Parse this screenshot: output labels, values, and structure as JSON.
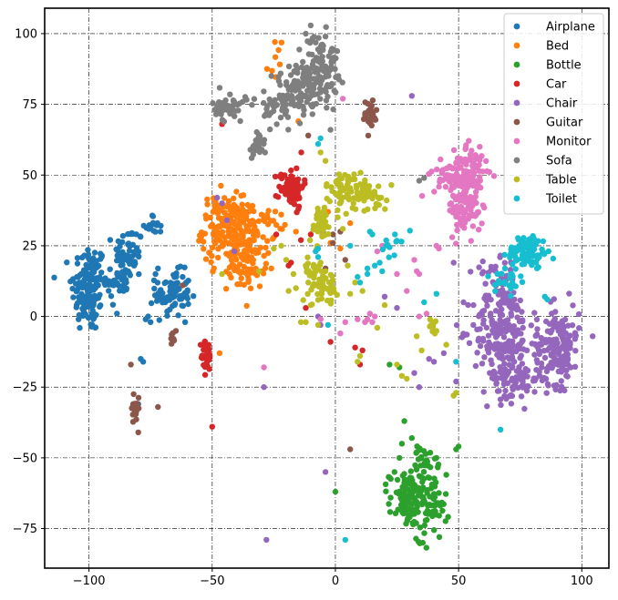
{
  "chart_data": {
    "type": "scatter",
    "title": "",
    "xlabel": "",
    "ylabel": "",
    "xlim": [
      -118,
      111
    ],
    "ylim": [
      -89,
      109
    ],
    "xticks": [
      -100,
      -50,
      0,
      50,
      100
    ],
    "yticks": [
      -75,
      -50,
      -25,
      0,
      25,
      50,
      75,
      100
    ],
    "x_tick_labels": [
      "−100",
      "−50",
      "0",
      "50",
      "100"
    ],
    "y_tick_labels": [
      "−75",
      "−50",
      "−25",
      "0",
      "25",
      "50",
      "75",
      "100"
    ],
    "grid": true,
    "legend_position": "top-right",
    "series": [
      {
        "name": "Airplane",
        "color": "#1f77b4",
        "clusters": [
          {
            "cx": -100,
            "cy": 10,
            "sx": 3.5,
            "sy": 8,
            "n": 150
          },
          {
            "cx": -84,
            "cy": 22,
            "sx": 3,
            "sy": 5,
            "n": 55
          },
          {
            "cx": -66,
            "cy": 8,
            "sx": 3.5,
            "sy": 4,
            "n": 80
          },
          {
            "cx": -74,
            "cy": 32,
            "sx": 1.5,
            "sy": 2,
            "n": 14
          },
          {
            "cx": -88,
            "cy": 13,
            "sx": 4,
            "sy": 2.5,
            "n": 25
          }
        ],
        "points": [
          [
            -77,
            -1
          ],
          [
            -75,
            -2
          ],
          [
            -72,
            17
          ],
          [
            -73,
            15
          ],
          [
            -78,
            -16
          ],
          [
            -80,
            -31
          ],
          [
            -61,
            -2
          ],
          [
            -62,
            14
          ],
          [
            -69,
            5
          ],
          [
            -76,
            0
          ],
          [
            -86,
            9
          ],
          [
            -90,
            11
          ],
          [
            -79,
            -15
          ],
          [
            -71,
            30
          ]
        ]
      },
      {
        "name": "Bed",
        "color": "#ff7f0e",
        "clusters": [
          {
            "cx": -46,
            "cy": 31,
            "sx": 4,
            "sy": 6,
            "n": 130
          },
          {
            "cx": -36,
            "cy": 23,
            "sx": 4,
            "sy": 7,
            "n": 130
          },
          {
            "cx": -38,
            "cy": 35,
            "sx": 3,
            "sy": 3,
            "n": 30
          },
          {
            "cx": -26,
            "cy": 34,
            "sx": 2.5,
            "sy": 3,
            "n": 15
          },
          {
            "cx": -24,
            "cy": 91,
            "sx": 1.5,
            "sy": 4,
            "n": 8
          }
        ],
        "points": [
          [
            -47,
            -13
          ],
          [
            -16,
            30
          ],
          [
            -15,
            69
          ],
          [
            -22,
            36
          ],
          [
            -2,
            26
          ],
          [
            2,
            24
          ],
          [
            6,
            33
          ],
          [
            -3,
            37
          ],
          [
            -26,
            17
          ],
          [
            -30,
            16
          ],
          [
            -43,
            15
          ],
          [
            -25,
            28
          ]
        ]
      },
      {
        "name": "Bottle",
        "color": "#2ca02c",
        "clusters": [
          {
            "cx": 30,
            "cy": -65,
            "sx": 4,
            "sy": 5,
            "n": 100
          },
          {
            "cx": 39,
            "cy": -67,
            "sx": 3,
            "sy": 6,
            "n": 60
          },
          {
            "cx": 36,
            "cy": -53,
            "sx": 2.5,
            "sy": 4,
            "n": 30
          }
        ],
        "points": [
          [
            28,
            -37
          ],
          [
            27,
            -45
          ],
          [
            26,
            -50
          ],
          [
            24,
            -55
          ],
          [
            22,
            -57
          ],
          [
            50,
            -46
          ],
          [
            49,
            -47
          ],
          [
            0,
            -62
          ],
          [
            26,
            -18
          ],
          [
            22,
            -17
          ],
          [
            33,
            -48
          ],
          [
            41,
            -50
          ],
          [
            45,
            -56
          ],
          [
            31,
            -43
          ]
        ]
      },
      {
        "name": "Car",
        "color": "#d62728",
        "clusters": [
          {
            "cx": -18,
            "cy": 46,
            "sx": 2.5,
            "sy": 3.5,
            "n": 75
          },
          {
            "cx": -52,
            "cy": -14,
            "sx": 1.2,
            "sy": 3,
            "n": 28
          }
        ],
        "points": [
          [
            -46,
            68
          ],
          [
            -50,
            -39
          ],
          [
            -18,
            19
          ],
          [
            -19,
            18
          ],
          [
            -15,
            38
          ],
          [
            -10,
            29
          ],
          [
            -14,
            27
          ],
          [
            -24,
            29
          ],
          [
            -2,
            -9
          ],
          [
            8,
            -11
          ],
          [
            11,
            -12
          ],
          [
            10,
            -17
          ],
          [
            -12,
            3
          ],
          [
            -54,
            -10
          ]
        ]
      },
      {
        "name": "Chair",
        "color": "#9467bd",
        "clusters": [
          {
            "cx": 68,
            "cy": -5,
            "sx": 6,
            "sy": 8,
            "n": 200
          },
          {
            "cx": 90,
            "cy": -10,
            "sx": 4.5,
            "sy": 7,
            "n": 160
          },
          {
            "cx": 72,
            "cy": -22,
            "sx": 6,
            "sy": 4,
            "n": 80
          },
          {
            "cx": 66,
            "cy": 14,
            "sx": 5,
            "sy": 3,
            "n": 30
          }
        ],
        "points": [
          [
            -28,
            -79
          ],
          [
            -4,
            -55
          ],
          [
            31,
            78
          ],
          [
            -29,
            -25
          ],
          [
            34,
            -25
          ],
          [
            -48,
            42
          ],
          [
            -46,
            40
          ],
          [
            -44,
            34
          ],
          [
            -41,
            23
          ],
          [
            -5,
            30
          ],
          [
            -7,
            0
          ],
          [
            -6,
            -3
          ],
          [
            52,
            5
          ],
          [
            56,
            -3
          ],
          [
            48,
            19
          ],
          [
            25,
            3
          ],
          [
            20,
            7
          ],
          [
            49,
            -23
          ],
          [
            48,
            -28
          ],
          [
            40,
            -16
          ],
          [
            44,
            -13
          ],
          [
            38,
            -15
          ],
          [
            32,
            -20
          ]
        ]
      },
      {
        "name": "Guitar",
        "color": "#8c564b",
        "clusters": [
          {
            "cx": 14,
            "cy": 71,
            "sx": 1.5,
            "sy": 3,
            "n": 30
          },
          {
            "cx": -81,
            "cy": -32,
            "sx": 0.8,
            "sy": 3,
            "n": 18
          },
          {
            "cx": -66,
            "cy": -7,
            "sx": 0.8,
            "sy": 1.5,
            "n": 8
          }
        ],
        "points": [
          [
            -80,
            -41
          ],
          [
            -83,
            -17
          ],
          [
            -72,
            -32
          ],
          [
            -62,
            11
          ],
          [
            6,
            -47
          ],
          [
            -1,
            29
          ],
          [
            -1,
            26
          ],
          [
            -4,
            17
          ],
          [
            -11,
            64
          ],
          [
            4,
            20
          ],
          [
            2,
            30
          ]
        ]
      },
      {
        "name": "Monitor",
        "color": "#e377c2",
        "clusters": [
          {
            "cx": 50,
            "cy": 50,
            "sx": 5,
            "sy": 4,
            "n": 100
          },
          {
            "cx": 53,
            "cy": 39,
            "sx": 3.5,
            "sy": 5,
            "n": 90
          },
          {
            "cx": 56,
            "cy": 55,
            "sx": 2,
            "sy": 3,
            "n": 20
          }
        ],
        "points": [
          [
            3,
            77
          ],
          [
            -29,
            -18
          ],
          [
            2,
            -6
          ],
          [
            -6,
            -1
          ],
          [
            13,
            -1
          ],
          [
            15,
            -2
          ],
          [
            14,
            1
          ],
          [
            16,
            0
          ],
          [
            12,
            -2
          ],
          [
            32,
            20
          ],
          [
            33,
            16
          ],
          [
            34,
            15
          ],
          [
            25,
            15
          ],
          [
            29,
            9
          ],
          [
            41,
            25
          ],
          [
            42,
            24
          ],
          [
            34,
            0
          ],
          [
            37,
            1
          ],
          [
            17,
            23
          ],
          [
            19,
            25
          ],
          [
            9,
            -1
          ],
          [
            4,
            -2
          ]
        ]
      },
      {
        "name": "Sofa",
        "color": "#7f7f7f",
        "clusters": [
          {
            "cx": -6,
            "cy": 88,
            "sx": 3.5,
            "sy": 6,
            "n": 110
          },
          {
            "cx": -15,
            "cy": 80,
            "sx": 4,
            "sy": 5,
            "n": 90
          },
          {
            "cx": -23,
            "cy": 74,
            "sx": 3,
            "sy": 3,
            "n": 40
          },
          {
            "cx": -43,
            "cy": 74,
            "sx": 3.5,
            "sy": 2.5,
            "n": 45
          },
          {
            "cx": -31,
            "cy": 61,
            "sx": 1.5,
            "sy": 2.5,
            "n": 22
          }
        ],
        "points": [
          [
            -34,
            56
          ],
          [
            -26,
            85
          ],
          [
            -9,
            75
          ],
          [
            -2,
            66
          ],
          [
            34,
            48
          ],
          [
            36,
            49
          ],
          [
            -12,
            100
          ],
          [
            -4,
            99
          ]
        ]
      },
      {
        "name": "Table",
        "color": "#bcbd22",
        "clusters": [
          {
            "cx": 4,
            "cy": 45,
            "sx": 4,
            "sy": 3,
            "n": 55
          },
          {
            "cx": 13,
            "cy": 43,
            "sx": 4,
            "sy": 3,
            "n": 45
          },
          {
            "cx": -6,
            "cy": 33,
            "sx": 2.5,
            "sy": 3.5,
            "n": 40
          },
          {
            "cx": -5,
            "cy": 11,
            "sx": 3,
            "sy": 3,
            "n": 45
          },
          {
            "cx": -9,
            "cy": 17,
            "sx": 2,
            "sy": 2,
            "n": 15
          },
          {
            "cx": 40,
            "cy": -4,
            "sx": 1,
            "sy": 2,
            "n": 12
          }
        ],
        "points": [
          [
            -6,
            58
          ],
          [
            -4,
            55
          ],
          [
            -10,
            4
          ],
          [
            -14,
            -2
          ],
          [
            -12,
            -2
          ],
          [
            -11,
            12
          ],
          [
            -16,
            10
          ],
          [
            -19,
            9
          ],
          [
            -20,
            20
          ],
          [
            -22,
            25
          ],
          [
            -17,
            15
          ],
          [
            10,
            -14
          ],
          [
            9,
            -16
          ],
          [
            11,
            9
          ],
          [
            8,
            12
          ],
          [
            3,
            31
          ],
          [
            17,
            -4
          ],
          [
            20,
            4
          ],
          [
            25,
            -17
          ],
          [
            27,
            -21
          ],
          [
            29,
            -22
          ],
          [
            33,
            -7
          ],
          [
            35,
            -12
          ],
          [
            45,
            -10
          ],
          [
            48,
            -28
          ],
          [
            49,
            -27
          ],
          [
            -7,
            -3
          ],
          [
            -4,
            16
          ],
          [
            -6,
            19
          ],
          [
            -25,
            24
          ],
          [
            -31,
            16
          ],
          [
            -46,
            15
          ],
          [
            5,
            18
          ],
          [
            6,
            8
          ]
        ]
      },
      {
        "name": "Toilet",
        "color": "#17becf",
        "clusters": [
          {
            "cx": 78,
            "cy": 23,
            "sx": 4,
            "sy": 3,
            "n": 100
          },
          {
            "cx": 70,
            "cy": 13,
            "sx": 2.5,
            "sy": 2.5,
            "n": 25
          },
          {
            "cx": 23,
            "cy": 26,
            "sx": 2,
            "sy": 2,
            "n": 12
          }
        ],
        "points": [
          [
            4,
            -79
          ],
          [
            -6,
            63
          ],
          [
            -7,
            61
          ],
          [
            -3,
            -3
          ],
          [
            -8,
            23
          ],
          [
            -7,
            24
          ],
          [
            -7,
            21
          ],
          [
            14,
            30
          ],
          [
            15,
            29
          ],
          [
            16,
            18
          ],
          [
            13,
            15
          ],
          [
            13,
            17
          ],
          [
            18,
            19
          ],
          [
            19,
            16
          ],
          [
            36,
            5
          ],
          [
            41,
            8
          ],
          [
            49,
            -16
          ],
          [
            67,
            -40
          ],
          [
            85,
            7
          ],
          [
            86,
            6
          ],
          [
            9,
            14
          ],
          [
            10,
            12
          ],
          [
            6,
            25
          ]
        ]
      }
    ]
  }
}
